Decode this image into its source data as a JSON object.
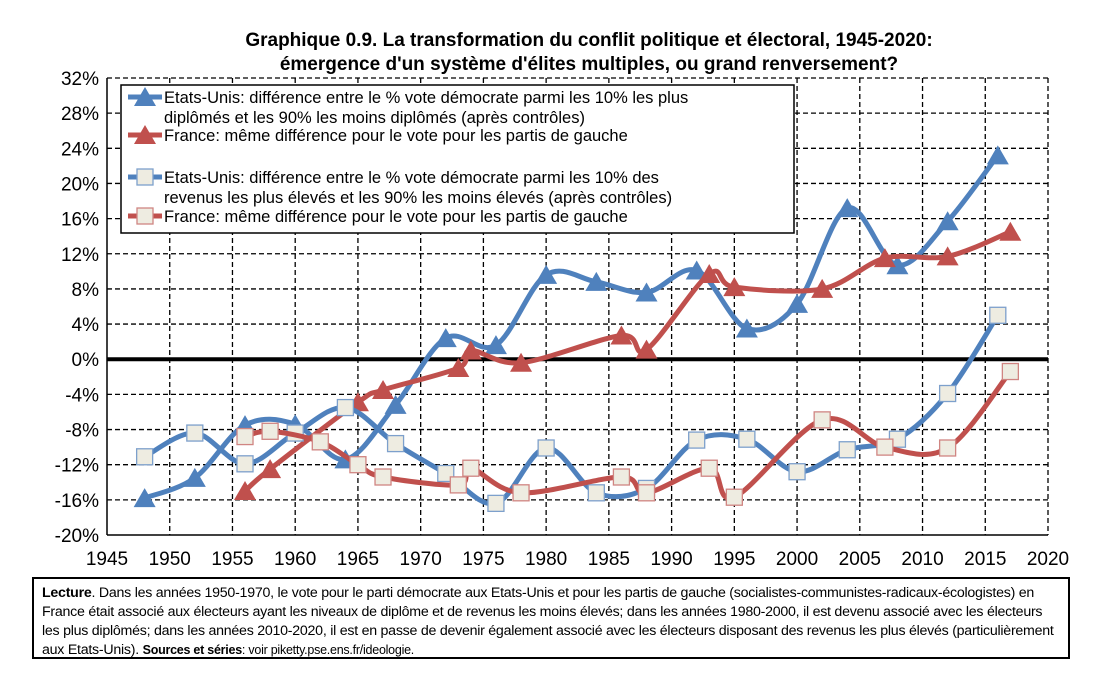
{
  "chart_data": {
    "type": "line",
    "title": [
      "Graphique 0.9. La transformation du conflit politique et électoral, 1945-2020:",
      "émergence d'un système d'élites multiples, ou grand renversement?"
    ],
    "xlabel": "",
    "ylabel": "",
    "xlim": [
      1945,
      2020
    ],
    "ylim": [
      -20,
      32
    ],
    "xticks": [
      1945,
      1950,
      1955,
      1960,
      1965,
      1970,
      1975,
      1980,
      1985,
      1990,
      1995,
      2000,
      2005,
      2010,
      2015,
      2020
    ],
    "yticks": [
      -20,
      -16,
      -12,
      -8,
      -4,
      0,
      4,
      8,
      12,
      16,
      20,
      24,
      28,
      32
    ],
    "ytick_format": "percent",
    "grid": true,
    "legend_placement": "top-left",
    "series": [
      {
        "name": [
          "Etats-Unis: différence entre le % vote démocrate parmi les 10% les plus",
          "diplômés et les 90% les moins diplômés (après contrôles)"
        ],
        "color": "#4f81bd",
        "marker": "triangle",
        "x": [
          1948,
          1952,
          1956,
          1960,
          1964,
          1968,
          1972,
          1976,
          1980,
          1984,
          1988,
          1992,
          1996,
          2000,
          2004,
          2008,
          2012,
          2016
        ],
        "y": [
          -15.8,
          -13.5,
          -7.5,
          -7.4,
          -11.4,
          -5.2,
          2.4,
          1.6,
          9.6,
          8.8,
          7.6,
          10.1,
          3.5,
          6.3,
          17.2,
          10.7,
          15.7,
          23.2
        ]
      },
      {
        "name": [
          "France: même différence pour le vote pour les partis de gauche"
        ],
        "color": "#c0504d",
        "marker": "triangle",
        "x": [
          1956,
          1958,
          1965,
          1967,
          1973,
          1974,
          1978,
          1986,
          1988,
          1993,
          1995,
          2002,
          2007,
          2012,
          2017
        ],
        "y": [
          -15.0,
          -12.5,
          -4.9,
          -3.5,
          -1.0,
          1.0,
          -0.4,
          2.7,
          1.1,
          9.7,
          8.2,
          8.0,
          11.5,
          11.7,
          14.5
        ]
      },
      {
        "name": [
          "Etats-Unis: différence entre le % vote démocrate parmi les 10% des",
          "revenus les plus élevés et les 90% les moins élevés (après contrôles)"
        ],
        "color": "#4f81bd",
        "marker": "square",
        "x": [
          1948,
          1952,
          1956,
          1960,
          1964,
          1968,
          1972,
          1976,
          1980,
          1984,
          1988,
          1992,
          1996,
          2000,
          2004,
          2008,
          2012,
          2016
        ],
        "y": [
          -11.1,
          -8.4,
          -11.9,
          -8.4,
          -5.5,
          -9.6,
          -13.0,
          -16.4,
          -10.1,
          -15.2,
          -14.7,
          -9.2,
          -9.1,
          -12.8,
          -10.3,
          -9.1,
          -3.9,
          5.0
        ]
      },
      {
        "name": [
          "France: même différence pour le vote pour les partis de gauche"
        ],
        "color": "#c0504d",
        "marker": "square",
        "x": [
          1956,
          1958,
          1962,
          1965,
          1967,
          1973,
          1974,
          1978,
          1986,
          1988,
          1993,
          1995,
          2002,
          2007,
          2012,
          2017
        ],
        "y": [
          -8.8,
          -8.2,
          -9.4,
          -12.0,
          -13.4,
          -14.3,
          -12.4,
          -15.2,
          -13.4,
          -15.2,
          -12.4,
          -15.7,
          -6.9,
          -10.0,
          -10.1,
          -1.4
        ]
      }
    ],
    "marker_fill_square": "#eeece1"
  },
  "note": {
    "lead": "Lecture",
    "text": ". Dans les années 1950-1970, le vote pour le parti démocrate aux Etats-Unis et pour les partis de gauche (socialistes-communistes-radicaux-écologistes) en France était associé aux électeurs ayant les niveaux de diplôme et de revenus les moins élevés; dans les années 1980-2000, il est devenu associé avec les électeurs les plus diplômés; dans les années 2010-2020, il est en passe de devenir également associé avec les électeurs disposant des revenus les plus élevés (particulièrement aux Etats-Unis). ",
    "sources_label": "Sources et séries",
    "sources_text": ": voir piketty.pse.ens.fr/ideologie."
  }
}
